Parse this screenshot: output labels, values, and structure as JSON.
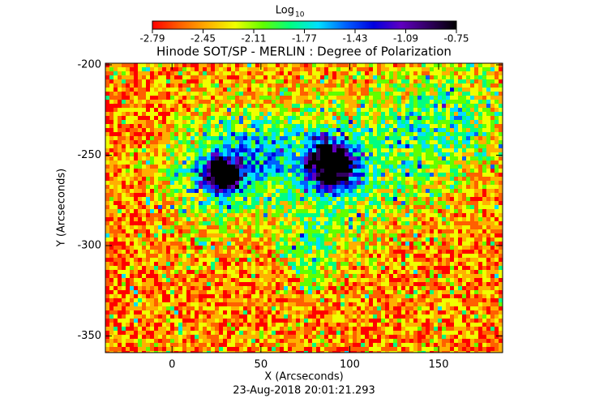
{
  "chart_data": {
    "type": "image",
    "title": "Hinode SOT/SP - MERLIN : Degree of Polarization",
    "x_label": "X (Arcseconds)",
    "y_label": "Y (Arcseconds)",
    "timestamp": "23-Aug-2018 20:01:21.293",
    "xlim": [
      -37.5,
      186
    ],
    "xticks": [
      0,
      50,
      100,
      150
    ],
    "ylim": [
      -359.2,
      -199.1
    ],
    "yticks": [
      -200,
      -250,
      -300,
      -350
    ],
    "colorbar": {
      "label": "Log",
      "label_sub": "10",
      "clim": [
        -2.79,
        -0.75
      ],
      "ticks": [
        -2.79,
        -2.45,
        -2.11,
        -1.77,
        -1.43,
        -1.09,
        -0.75
      ],
      "colormap": [
        "#ff0000",
        "#ff6000",
        "#ffb000",
        "#f0ff00",
        "#60ff00",
        "#00ff80",
        "#00e0ff",
        "#0060ff",
        "#0000e0",
        "#6000c0",
        "#300060",
        "#000000"
      ]
    }
  }
}
